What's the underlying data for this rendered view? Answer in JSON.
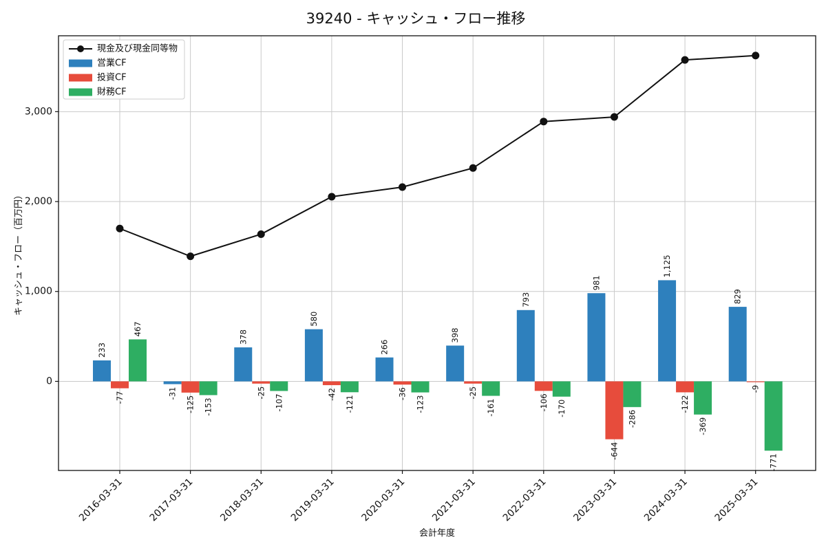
{
  "chart_data": {
    "type": "bar",
    "title": "39240 - キャッシュ・フロー推移",
    "xlabel": "会計年度",
    "ylabel": "キャッシュ・フロー（百万円）",
    "categories": [
      "2016-03-31",
      "2017-03-31",
      "2018-03-31",
      "2019-03-31",
      "2020-03-31",
      "2021-03-31",
      "2022-03-31",
      "2023-03-31",
      "2024-03-31",
      "2025-03-31"
    ],
    "series": [
      {
        "key": "cash-and-equivalents",
        "name": "現金及び現金同等物",
        "type": "line",
        "color": "#111111",
        "values": [
          1700,
          1391,
          1637,
          2054,
          2161,
          2373,
          2890,
          2941,
          3575,
          3624
        ]
      },
      {
        "key": "operating-cf",
        "name": "営業CF",
        "type": "bar",
        "color": "#2e80bd",
        "values": [
          233,
          -31,
          378,
          580,
          266,
          398,
          793,
          981,
          1125,
          829
        ],
        "value_labels": [
          "233",
          "-31",
          "378",
          "580",
          "266",
          "398",
          "793",
          "981",
          "1,125",
          "829"
        ]
      },
      {
        "key": "investing-cf",
        "name": "投資CF",
        "type": "bar",
        "color": "#e74c3c",
        "values": [
          -77,
          -125,
          -25,
          -42,
          -36,
          -25,
          -106,
          -644,
          -122,
          -9
        ],
        "value_labels": [
          "-77",
          "-125",
          "-25",
          "-42",
          "-36",
          "-25",
          "-106",
          "-644",
          "-122",
          "-9"
        ]
      },
      {
        "key": "financing-cf",
        "name": "財務CF",
        "type": "bar",
        "color": "#2eae62",
        "values": [
          467,
          -153,
          -107,
          -121,
          -123,
          -161,
          -170,
          -286,
          -369,
          -771
        ],
        "value_labels": [
          "467",
          "-153",
          "-107",
          "-121",
          "-123",
          "-161",
          "-170",
          "-286",
          "-369",
          "-771"
        ]
      }
    ],
    "yticks": {
      "values": [
        0,
        1000,
        2000,
        3000
      ],
      "labels": [
        "0",
        "1,000",
        "2,000",
        "3,000"
      ]
    },
    "ylim": [
      -991,
      3844
    ],
    "grid": true,
    "grid_color": "#c9c9c9",
    "legend_position": "upper-left"
  }
}
